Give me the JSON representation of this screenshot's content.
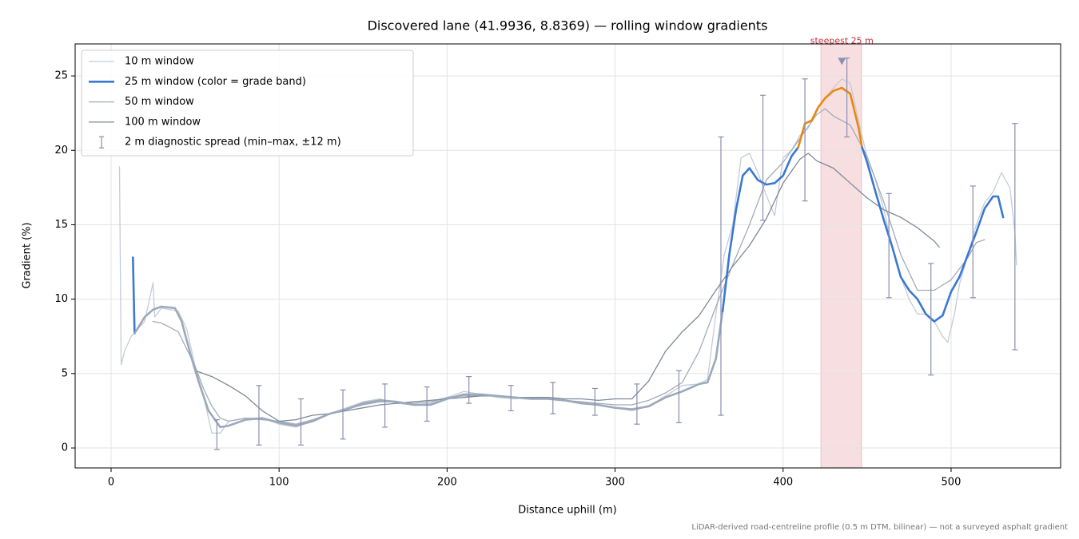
{
  "chart_data": {
    "type": "line",
    "title": "Discovered lane (41.9936, 8.8369) — rolling window gradients",
    "x_label": "Distance uphill (m)",
    "y_label": "Gradient (%)",
    "footnote": "LiDAR-derived road-centreline profile (0.5 m DTM, bilinear) — not a surveyed asphalt gradient",
    "xlim": [
      -21.4,
      565.2
    ],
    "ylim": [
      -1.34,
      27.15
    ],
    "xticks": [
      0,
      100,
      200,
      300,
      400,
      500
    ],
    "yticks": [
      0,
      5,
      10,
      15,
      20,
      25
    ],
    "grid": true,
    "legend": "upper left",
    "highlight": {
      "xmin": 422.5,
      "xmax": 446.7,
      "color": "#e8a0a8"
    },
    "annotation": {
      "text": "steepest 25 m",
      "x": 435,
      "y": 26,
      "color": "#c0303c",
      "marker_color": "#8a8fb8"
    },
    "series": [
      {
        "name": "10 m window",
        "color": "#c5ccd6",
        "width": 1.3,
        "x": [
          5,
          6,
          8,
          12,
          20,
          25,
          26,
          30,
          40,
          45,
          50,
          55,
          60,
          65,
          70,
          80,
          90,
          100,
          110,
          120,
          130,
          140,
          150,
          160,
          170,
          180,
          190,
          200,
          210,
          220,
          230,
          240,
          250,
          260,
          270,
          280,
          290,
          300,
          310,
          320,
          330,
          340,
          350,
          355,
          360,
          365,
          370,
          375,
          380,
          385,
          390,
          395,
          400,
          405,
          410,
          415,
          420,
          425,
          430,
          435,
          440,
          445,
          450,
          455,
          460,
          465,
          470,
          475,
          480,
          485,
          490,
          495,
          498,
          502,
          505,
          510,
          515,
          520,
          525,
          530,
          535,
          538,
          539
        ],
        "values": [
          18.9,
          5.6,
          6.5,
          7.5,
          8.5,
          11.1,
          8.8,
          9.4,
          9.2,
          8.0,
          5.5,
          3.5,
          1.0,
          1.0,
          1.8,
          2.0,
          2.0,
          1.6,
          1.4,
          1.8,
          2.3,
          2.7,
          3.1,
          3.3,
          3.0,
          2.9,
          3.0,
          3.4,
          3.8,
          3.6,
          3.4,
          3.3,
          3.4,
          3.4,
          3.2,
          3.0,
          2.9,
          2.7,
          2.5,
          2.8,
          3.5,
          4.2,
          4.3,
          4.6,
          9,
          13,
          15,
          19.5,
          19.8,
          18.5,
          17,
          15.6,
          19.5,
          20,
          21,
          21.5,
          22.8,
          23.5,
          24.2,
          24.8,
          24.5,
          22,
          19.5,
          18,
          16,
          13.5,
          11.5,
          10,
          9,
          9,
          8.5,
          7.5,
          7.1,
          9,
          11,
          13,
          15,
          16.5,
          17.2,
          18.5,
          17.5,
          14.5,
          12.3
        ]
      },
      {
        "name": "50 m window",
        "color": "#a3acb9",
        "width": 1.3,
        "x": [
          25,
          30,
          40,
          50,
          55,
          60,
          65,
          70,
          80,
          90,
          100,
          110,
          120,
          130,
          140,
          150,
          160,
          170,
          180,
          190,
          200,
          210,
          220,
          230,
          240,
          250,
          260,
          270,
          280,
          290,
          300,
          310,
          320,
          330,
          340,
          350,
          360,
          370,
          380,
          390,
          400,
          410,
          420,
          425,
          430,
          440,
          450,
          460,
          470,
          480,
          490,
          500,
          510,
          515,
          520
        ],
        "values": [
          8.5,
          8.4,
          7.8,
          5.5,
          4,
          2.8,
          2.0,
          1.8,
          2.0,
          1.9,
          1.8,
          1.6,
          1.9,
          2.3,
          2.6,
          2.9,
          3.1,
          3.1,
          3.0,
          3.1,
          3.4,
          3.5,
          3.5,
          3.5,
          3.4,
          3.3,
          3.3,
          3.2,
          3.1,
          3.0,
          2.9,
          2.9,
          3.2,
          3.7,
          4.4,
          6.5,
          9.5,
          12.3,
          15,
          18,
          19.2,
          20.8,
          22.4,
          22.8,
          22.3,
          21.7,
          19.6,
          16.5,
          13.0,
          10.6,
          10.6,
          11.3,
          12.8,
          13.8,
          14.0
        ]
      },
      {
        "name": "100 m window",
        "color": "#7f8898",
        "width": 1.3,
        "x": [
          50,
          60,
          70,
          80,
          90,
          100,
          110,
          120,
          130,
          140,
          150,
          160,
          170,
          180,
          190,
          200,
          210,
          220,
          230,
          240,
          250,
          260,
          270,
          280,
          290,
          300,
          310,
          320,
          330,
          340,
          350,
          360,
          370,
          380,
          390,
          400,
          410,
          415,
          420,
          430,
          440,
          450,
          460,
          470,
          480,
          490,
          493
        ],
        "values": [
          5.2,
          4.8,
          4.2,
          3.5,
          2.5,
          1.8,
          1.9,
          2.2,
          2.3,
          2.5,
          2.7,
          2.9,
          3.0,
          3.1,
          3.2,
          3.3,
          3.4,
          3.5,
          3.5,
          3.4,
          3.4,
          3.4,
          3.3,
          3.3,
          3.2,
          3.3,
          3.3,
          4.5,
          6.5,
          7.8,
          8.9,
          10.6,
          12.2,
          13.6,
          15.4,
          17.8,
          19.4,
          19.8,
          19.3,
          18.8,
          17.8,
          16.8,
          16.0,
          15.5,
          14.8,
          13.9,
          13.5
        ]
      },
      {
        "name": "25 m window (color = grade band)",
        "color": "#3a78d4",
        "width": 2.6,
        "x": [
          13,
          14,
          20,
          25,
          30,
          38,
          42,
          48,
          52,
          58,
          65,
          70,
          80,
          90,
          100,
          110,
          120,
          130,
          140,
          150,
          160,
          170,
          180,
          190,
          200,
          210,
          220,
          230,
          240,
          250,
          260,
          270,
          280,
          290,
          300,
          310,
          320,
          330,
          340,
          350,
          355,
          360,
          364,
          368,
          372,
          376,
          380,
          385,
          390,
          395,
          400,
          405,
          409,
          413,
          417,
          421,
          425,
          430,
          435,
          440,
          445,
          447,
          450,
          455,
          460,
          465,
          470,
          475,
          480,
          485,
          490,
          495,
          500,
          505,
          510,
          515,
          520,
          525,
          528,
          531
        ],
        "values": [
          12.8,
          7.7,
          8.8,
          9.3,
          9.5,
          9.4,
          8.5,
          6,
          4.5,
          2.5,
          1.4,
          1.5,
          1.9,
          2.0,
          1.7,
          1.5,
          1.8,
          2.3,
          2.6,
          3.0,
          3.2,
          3.1,
          2.9,
          2.9,
          3.3,
          3.6,
          3.6,
          3.5,
          3.4,
          3.3,
          3.3,
          3.2,
          3.0,
          2.9,
          2.7,
          2.6,
          2.8,
          3.4,
          3.8,
          4.3,
          4.4,
          6,
          9.2,
          13,
          16,
          18.3,
          18.8,
          18.0,
          17.7,
          17.8,
          18.3,
          19.6,
          20.2,
          21.8,
          22,
          22.9,
          23.5,
          24.0,
          24.2,
          23.8,
          21.5,
          20.2,
          19.2,
          17.2,
          15.3,
          13.5,
          11.5,
          10.6,
          10.0,
          9.0,
          8.5,
          8.9,
          10.5,
          11.5,
          13,
          14.5,
          16.1,
          16.9,
          16.9,
          15.5
        ],
        "colors": [
          "#3a78d4",
          "#9aa9bb",
          "#9aa9bb",
          "#9aa9bb",
          "#9aa9bb",
          "#9aa9bb",
          "#9aa9bb",
          "#9aa9bb",
          "#9aa9bb",
          "#9aa9bb",
          "#9aa9bb",
          "#9aa9bb",
          "#9aa9bb",
          "#9aa9bb",
          "#9aa9bb",
          "#9aa9bb",
          "#9aa9bb",
          "#9aa9bb",
          "#9aa9bb",
          "#9aa9bb",
          "#9aa9bb",
          "#9aa9bb",
          "#9aa9bb",
          "#9aa9bb",
          "#9aa9bb",
          "#9aa9bb",
          "#9aa9bb",
          "#9aa9bb",
          "#9aa9bb",
          "#9aa9bb",
          "#9aa9bb",
          "#9aa9bb",
          "#9aa9bb",
          "#9aa9bb",
          "#9aa9bb",
          "#9aa9bb",
          "#9aa9bb",
          "#9aa9bb",
          "#9aa9bb",
          "#9aa9bb",
          "#9aa9bb",
          "#9aa9bb",
          "#3a78d4",
          "#3a78d4",
          "#3a78d4",
          "#3a78d4",
          "#3a78d4",
          "#3a78d4",
          "#3a78d4",
          "#3a78d4",
          "#3a78d4",
          "#3a78d4",
          "#e6890f",
          "#e6890f",
          "#e6890f",
          "#e6890f",
          "#e6890f",
          "#e6890f",
          "#e6890f",
          "#e6890f",
          "#e6890f",
          "#3a78d4",
          "#3a78d4",
          "#3a78d4",
          "#3a78d4",
          "#3a78d4",
          "#3a78d4",
          "#3a78d4",
          "#3a78d4",
          "#3a78d4",
          "#3a78d4",
          "#3a78d4",
          "#3a78d4",
          "#3a78d4",
          "#3a78d4",
          "#3a78d4",
          "#3a78d4",
          "#3a78d4",
          "#3a78d4",
          "#3a78d4"
        ]
      }
    ],
    "errorbars": {
      "name": "2 m diagnostic spread (min–max, ±12 m)",
      "color": "#8a8fb0",
      "x": [
        63,
        88,
        113,
        138,
        163,
        188,
        213,
        238,
        263,
        288,
        313,
        338,
        363,
        388,
        413,
        438,
        463,
        488,
        513,
        538
      ],
      "low": [
        -0.1,
        0.2,
        0.2,
        0.6,
        1.4,
        1.8,
        3.0,
        2.5,
        2.3,
        2.2,
        1.6,
        1.7,
        2.2,
        15.3,
        16.6,
        20.9,
        10.1,
        4.9,
        10.1,
        6.6
      ],
      "high": [
        1.9,
        4.2,
        3.3,
        3.9,
        4.3,
        4.1,
        4.8,
        4.2,
        4.4,
        4.0,
        4.3,
        5.2,
        20.9,
        23.7,
        24.8,
        26.2,
        17.1,
        12.4,
        17.6,
        21.8
      ]
    }
  }
}
